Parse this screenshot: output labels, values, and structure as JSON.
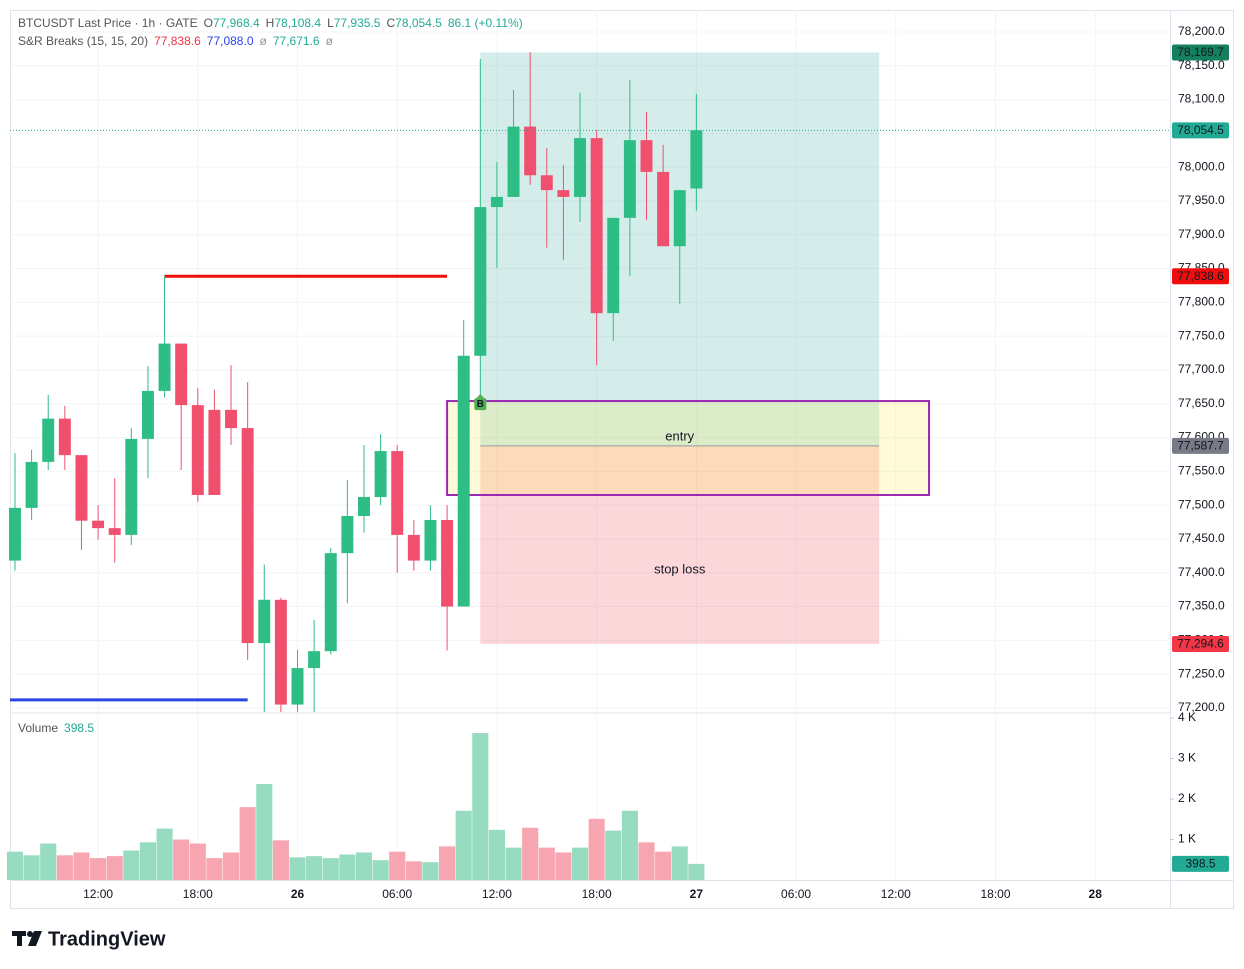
{
  "chart_data": [
    {
      "type": "candlestick",
      "legend": {
        "title": "BTCUSDT Last Price · 1h · GATE",
        "items": [
          {
            "label": "O",
            "value": "77,968.4"
          },
          {
            "label": "H",
            "value": "78,108.4"
          },
          {
            "label": "L",
            "value": "77,935.5"
          },
          {
            "label": "C",
            "value": "78,054.5"
          }
        ],
        "change": "86.1 (+0.11%)"
      },
      "indicator": {
        "name": "S&R Breaks (15, 15, 20)",
        "values": [
          {
            "text": "77,838.6",
            "color": "#f23645"
          },
          {
            "text": "77,088.0",
            "color": "#2945e8"
          },
          {
            "text": "ø",
            "color": "#9598a1"
          },
          {
            "text": "77,671.6",
            "color": "#22ab94"
          },
          {
            "text": "ø",
            "color": "#9598a1"
          }
        ]
      },
      "x": [
        -17,
        -16,
        -15,
        -14,
        -13,
        -12,
        -11,
        -10,
        -9,
        -8,
        -7,
        -6,
        -5,
        -4,
        -3,
        -2,
        -1,
        0,
        1,
        2,
        3,
        4,
        5,
        6,
        7,
        8,
        9,
        10,
        11,
        12,
        13,
        14,
        15,
        16,
        17,
        18,
        19,
        20,
        21,
        22,
        23,
        24
      ],
      "open": [
        77418,
        77496,
        77564,
        77628,
        77574,
        77477,
        77466,
        77456,
        77598,
        77669,
        77739,
        77648,
        77641,
        77641,
        77614,
        77296,
        77360,
        77205,
        77259,
        77284,
        77429,
        77484,
        77512,
        77580,
        77456,
        77418,
        77478,
        77350,
        77721,
        77941,
        77956,
        78060,
        77988,
        77966,
        77956,
        78043,
        77784,
        77925,
        78040,
        77993,
        77883,
        77968.4
      ],
      "high": [
        77577,
        77582,
        77663,
        77647,
        77574,
        77500,
        77540,
        77614,
        77706,
        77838.6,
        77739,
        77673,
        77671,
        77707,
        77682,
        77412,
        77363,
        77286,
        77330,
        77437,
        77537,
        77589,
        77605,
        77589,
        77478,
        77500,
        77500,
        77774,
        78160,
        78008,
        78114,
        78170,
        78028,
        78003,
        78110,
        78055,
        77925,
        78129,
        78082,
        78033,
        77966,
        78108.4
      ],
      "low": [
        77403,
        77478,
        77552,
        77552,
        77434,
        77449,
        77415,
        77441,
        77540,
        77659,
        77552,
        77505,
        77515,
        77589,
        77271,
        77194,
        77194,
        77194,
        77194,
        77279,
        77355,
        77459,
        77500,
        77400,
        77403,
        77403,
        77285,
        77350,
        77663,
        77851,
        77956,
        77974,
        77881,
        77863,
        77919,
        77707,
        77743,
        77839,
        77922,
        77883,
        77798,
        77935.5
      ],
      "close": [
        77496,
        77564,
        77628,
        77574,
        77477,
        77466,
        77456,
        77598,
        77669,
        77739,
        77648,
        77515,
        77515,
        77614,
        77296,
        77360,
        77205,
        77259,
        77284,
        77429,
        77484,
        77512,
        77580,
        77456,
        77418,
        77478,
        77350,
        77721,
        77941,
        77956,
        78060,
        77988,
        77966,
        77956,
        78043,
        77784,
        77925,
        78040,
        77993,
        77883,
        77966,
        78054.5
      ],
      "up_color": "#2ebd85",
      "down_color": "#f0506e",
      "xlim": [
        -17.3,
        52.5
      ],
      "xticks": [
        {
          "value": -12,
          "label": "12:00"
        },
        {
          "value": -6,
          "label": "18:00"
        },
        {
          "value": 0,
          "label": "26"
        },
        {
          "value": 6,
          "label": "06:00"
        },
        {
          "value": 12,
          "label": "12:00"
        },
        {
          "value": 18,
          "label": "18:00"
        },
        {
          "value": 24,
          "label": "27"
        },
        {
          "value": 30,
          "label": "06:00"
        },
        {
          "value": 36,
          "label": "12:00"
        },
        {
          "value": 42,
          "label": "18:00"
        },
        {
          "value": 48,
          "label": "28"
        }
      ],
      "ylim": [
        77194,
        78232.5
      ],
      "yticks": [
        {
          "value": 77200,
          "label": "77,200.0"
        },
        {
          "value": 77250,
          "label": "77,250.0"
        },
        {
          "value": 77300,
          "label": "77,300.0"
        },
        {
          "value": 77350,
          "label": "77,350.0"
        },
        {
          "value": 77400,
          "label": "77,400.0"
        },
        {
          "value": 77450,
          "label": "77,450.0"
        },
        {
          "value": 77500,
          "label": "77,500.0"
        },
        {
          "value": 77550,
          "label": "77,550.0"
        },
        {
          "value": 77600,
          "label": "77,600.0"
        },
        {
          "value": 77650,
          "label": "77,650.0"
        },
        {
          "value": 77700,
          "label": "77,700.0"
        },
        {
          "value": 77750,
          "label": "77,750.0"
        },
        {
          "value": 77800,
          "label": "77,800.0"
        },
        {
          "value": 77850,
          "label": "77,850.0"
        },
        {
          "value": 77900,
          "label": "77,900.0"
        },
        {
          "value": 77950,
          "label": "77,950.0"
        },
        {
          "value": 78000,
          "label": "78,000.0"
        },
        {
          "value": 78050,
          "label": "78,050.0"
        },
        {
          "value": 78100,
          "label": "78,100.0"
        },
        {
          "value": 78150,
          "label": "78,150.0"
        },
        {
          "value": 78200,
          "label": "78,200.0"
        }
      ],
      "grid": true,
      "last": {
        "value": 78054.5,
        "label": "78,054.5",
        "color": "#22ab94"
      },
      "levels": [
        {
          "value": 77838.6,
          "label": "77,838.6",
          "x_start": -8,
          "x_end": 9,
          "color": "#f20d0d"
        },
        {
          "value": 77212,
          "x_start": -17.3,
          "x_end": -3,
          "color": "#2945e8"
        }
      ],
      "position": {
        "x_start": 11,
        "x_end": 35,
        "target": {
          "value": 78169.7,
          "label": "78,169.7",
          "color": "#14805e"
        },
        "entry": {
          "value": 77587.7,
          "label": "77,587.7",
          "color": "#787b86"
        },
        "stop": {
          "value": 77294.6,
          "label": "77,294.6",
          "color": "#f23645"
        },
        "entry_text": "entry",
        "stop_text": "stop loss"
      },
      "box": {
        "x_start": 9,
        "x_end": 38,
        "top": 77654,
        "bottom": 77515,
        "color": "#9c27b0"
      },
      "signal": {
        "x": 11,
        "value": 77651,
        "text": "B",
        "color": "#4caf50"
      }
    },
    {
      "type": "bar",
      "title": "Volume",
      "x": [
        -17,
        -16,
        -15,
        -14,
        -13,
        -12,
        -11,
        -10,
        -9,
        -8,
        -7,
        -6,
        -5,
        -4,
        -3,
        -2,
        -1,
        0,
        1,
        2,
        3,
        4,
        5,
        6,
        7,
        8,
        9,
        10,
        11,
        12,
        13,
        14,
        15,
        16,
        17,
        18,
        19,
        20,
        21,
        22,
        23,
        24
      ],
      "values": [
        700,
        610,
        900,
        610,
        680,
        540,
        590,
        730,
        930,
        1270,
        1000,
        900,
        540,
        680,
        1800,
        2370,
        980,
        560,
        590,
        540,
        630,
        680,
        490,
        700,
        460,
        440,
        830,
        1710,
        3630,
        1240,
        800,
        1290,
        800,
        680,
        800,
        1510,
        1220,
        1710,
        930,
        700,
        830,
        398.5
      ],
      "up_color": "#97dcc0",
      "down_color": "#f7a5b0",
      "last_color": "#22ab94",
      "xlim": [
        -17.3,
        52.5
      ],
      "ylim": [
        0,
        4100
      ],
      "yticks": [
        {
          "value": 1000,
          "label": "1 K"
        },
        {
          "value": 2000,
          "label": "2 K"
        },
        {
          "value": 3000,
          "label": "3 K"
        },
        {
          "value": 4000,
          "label": "4 K"
        }
      ]
    }
  ],
  "footer": {
    "brand": "TradingView"
  }
}
